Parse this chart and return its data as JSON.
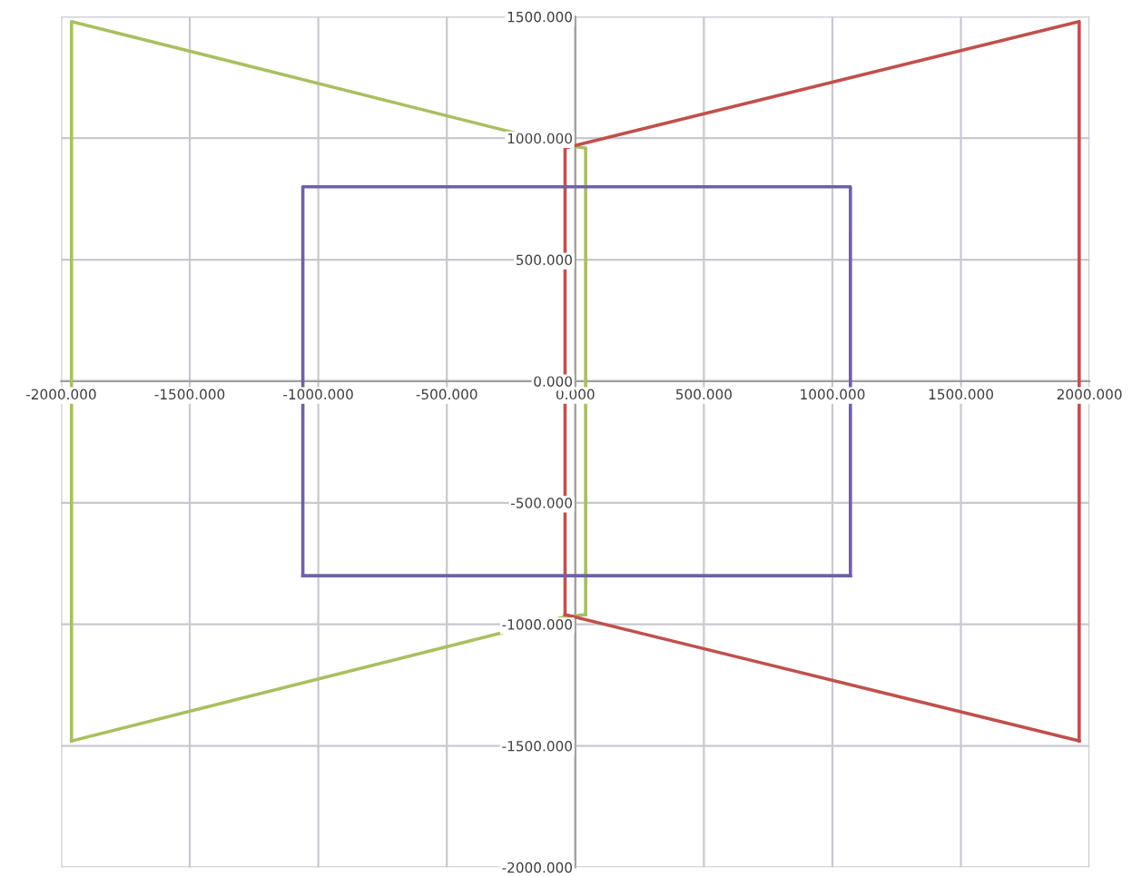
{
  "chart_data": {
    "type": "line",
    "marker": "none",
    "line_style": "solid",
    "grid": true,
    "xlim": [
      -2000,
      2000
    ],
    "ylim": [
      -2000,
      1500
    ],
    "xticks": [
      {
        "value": -2000,
        "label": "-2000.000"
      },
      {
        "value": -1500,
        "label": "-1500.000"
      },
      {
        "value": -1000,
        "label": "-1000.000"
      },
      {
        "value": -500,
        "label": "-500.000"
      },
      {
        "value": 0,
        "label": "0.000"
      },
      {
        "value": 500,
        "label": "500.000"
      },
      {
        "value": 1000,
        "label": "1000.000"
      },
      {
        "value": 1500,
        "label": "1500.000"
      },
      {
        "value": 2000,
        "label": "2000.000"
      }
    ],
    "yticks": [
      {
        "value": -2000,
        "label": "-2000.000"
      },
      {
        "value": -1500,
        "label": "-1500.000"
      },
      {
        "value": -1000,
        "label": "-1000.000"
      },
      {
        "value": -500,
        "label": "-500.000"
      },
      {
        "value": 0,
        "label": "0.000"
      },
      {
        "value": 500,
        "label": "500.000"
      },
      {
        "value": 1000,
        "label": "1000.000"
      },
      {
        "value": 1500,
        "label": "1500.000"
      }
    ],
    "series": [
      {
        "color": "#a8c060",
        "x": [
          -1960,
          -1960,
          -40,
          40,
          40
        ],
        "values": [
          -1480,
          1480,
          970,
          960,
          -960
        ]
      },
      {
        "color": "#a8c060",
        "x": [
          -1960,
          -40,
          40
        ],
        "values": [
          -1480,
          -970,
          -960
        ]
      },
      {
        "color": "#c0504d",
        "x": [
          -40,
          -40,
          1960,
          1960
        ],
        "values": [
          -960,
          960,
          1480,
          -1480
        ]
      },
      {
        "color": "#c0504d",
        "x": [
          -40,
          1960
        ],
        "values": [
          -960,
          -1480
        ]
      },
      {
        "color": "#7060a8",
        "x": [
          -1060,
          -1060,
          1070,
          1070
        ],
        "values": [
          -800,
          800,
          800,
          -800
        ]
      },
      {
        "color": "#7060a8",
        "x": [
          -1060,
          1070
        ],
        "values": [
          -800,
          -800
        ]
      }
    ]
  }
}
